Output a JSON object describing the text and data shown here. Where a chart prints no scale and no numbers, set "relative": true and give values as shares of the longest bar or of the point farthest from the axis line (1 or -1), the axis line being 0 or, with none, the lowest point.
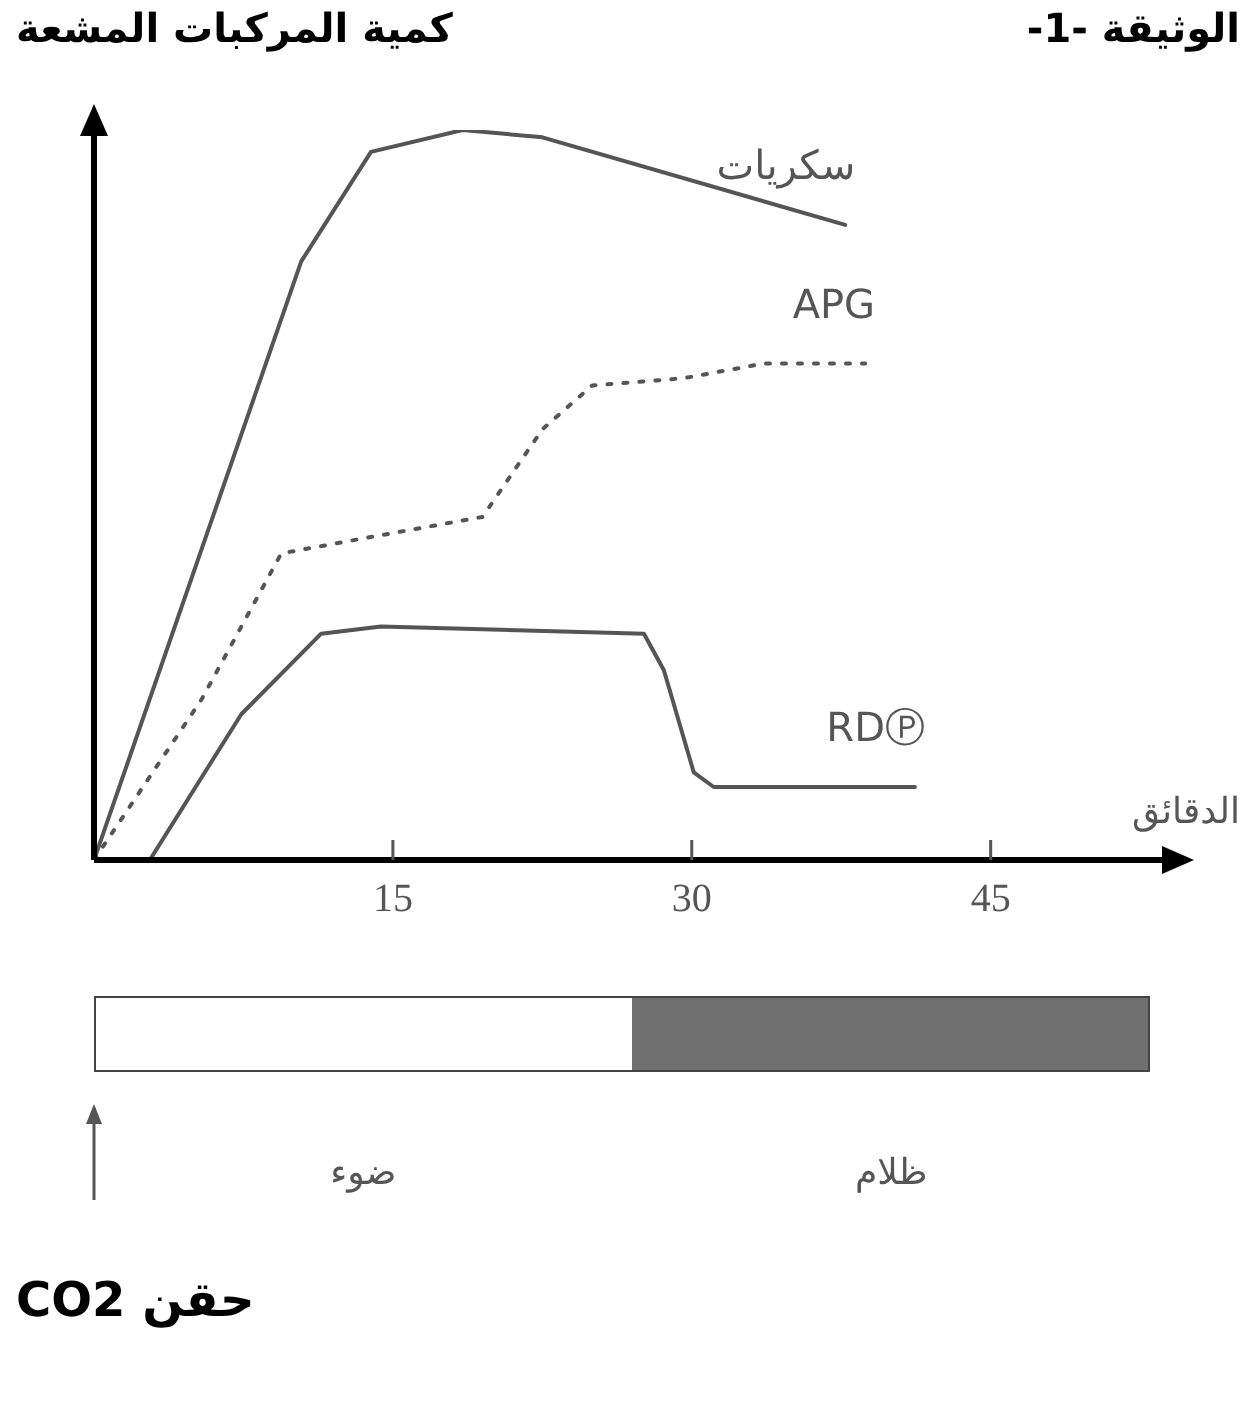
{
  "chart_data": {
    "type": "line",
    "relative": true,
    "title": "الوثيقة -1-",
    "ylabel": "كمية المركبات المشعة",
    "xlabel": "الدقائق",
    "xlim": [
      0,
      54
    ],
    "xticks": [
      15,
      30,
      45
    ],
    "marker": "none",
    "grid": false,
    "legend": false,
    "series": [
      {
        "name": "سكريات",
        "color": "#555555",
        "line_style": "solid",
        "x": [
          0,
          10.4,
          13.9,
          18.5,
          22.5,
          37.7
        ],
        "values": [
          0,
          0.82,
          0.97,
          1.0,
          0.99,
          0.87
        ]
      },
      {
        "name": "APG",
        "color": "#555555",
        "line_style": "dotted",
        "x": [
          0,
          5.4,
          9.4,
          13.4,
          19.5,
          22.5,
          25,
          29.6,
          33.6,
          38.7
        ],
        "values": [
          0,
          0.22,
          0.42,
          0.44,
          0.47,
          0.59,
          0.65,
          0.66,
          0.68,
          0.68
        ]
      },
      {
        "name": "RDⓅ",
        "color": "#555555",
        "line_style": "solid",
        "x": [
          0,
          2.8,
          7.4,
          11.4,
          14.4,
          27.6,
          28.6,
          30.1,
          31.1,
          41.2
        ],
        "values": [
          0,
          0,
          0.2,
          0.31,
          0.32,
          0.31,
          0.26,
          0.12,
          0.1,
          0.1
        ]
      }
    ],
    "annotations": [
      "ضوء",
      "ظلام",
      "حقن CO2"
    ]
  }
}
